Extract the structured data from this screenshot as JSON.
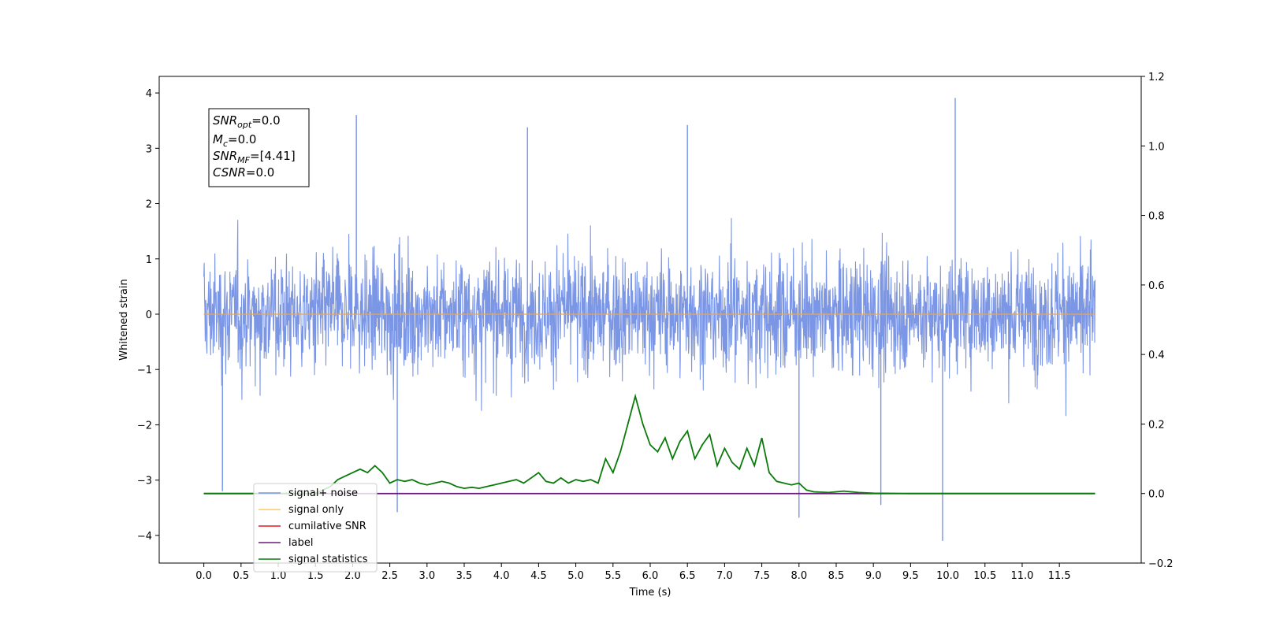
{
  "chart_data": {
    "type": "line",
    "title": "",
    "xlabel": "Time (s)",
    "ylabel": "Whitened strain",
    "xlim": [
      -0.6,
      12.6
    ],
    "ylim": [
      -4.5,
      4.3
    ],
    "y2lim": [
      -0.2,
      1.2
    ],
    "x_ticks": [
      "0.0",
      "0.5",
      "1.0",
      "1.5",
      "2.0",
      "2.5",
      "3.0",
      "3.5",
      "4.0",
      "4.5",
      "5.0",
      "5.5",
      "6.0",
      "6.5",
      "7.0",
      "7.5",
      "8.0",
      "8.5",
      "9.0",
      "9.5",
      "10.0",
      "10.5",
      "11.0",
      "11.5"
    ],
    "y_ticks": [
      "−4",
      "−3",
      "−2",
      "−1",
      "0",
      "1",
      "2",
      "3",
      "4"
    ],
    "y2_ticks": [
      "−0.2",
      "0.0",
      "0.2",
      "0.4",
      "0.6",
      "0.8",
      "1.0",
      "1.2"
    ],
    "grid": false,
    "legend_position": "lower-left",
    "annotation": {
      "line1_main": "SNR",
      "line1_sub": "opt",
      "line1_rest": "=0.0",
      "line2_main": "M",
      "line2_sub": "c",
      "line2_rest": "=0.0",
      "line3_main": "SNR",
      "line3_sub": "MF",
      "line3_rest": "=[4.41]",
      "line4_main": "CSNR",
      "line4_rest": "=0.0"
    },
    "series": [
      {
        "name": "signal+ noise",
        "color": "#7994e6",
        "axis": "left",
        "description_values": {
          "x_range": [
            0.0,
            11.98
          ],
          "approx_envelope": [
            -2.0,
            2.0
          ],
          "max": 3.91,
          "min": -4.1
        }
      },
      {
        "name": "signal only",
        "color": "#f5a623",
        "axis": "left",
        "x": [
          0.0,
          11.98
        ],
        "values": [
          0.0,
          0.0
        ]
      },
      {
        "name": "cumilative SNR",
        "color": "#e31a1c",
        "axis": "right",
        "x": [
          0.0,
          11.98
        ],
        "values": [
          0.0,
          0.0
        ]
      },
      {
        "name": "label",
        "color": "#6a1b7a",
        "axis": "right",
        "x": [
          0.0,
          11.98
        ],
        "values": [
          0.0,
          0.0
        ]
      },
      {
        "name": "signal statistics",
        "color": "#0a7a0a",
        "axis": "right",
        "x": [
          0.0,
          1.0,
          1.5,
          1.6,
          1.7,
          1.8,
          1.9,
          2.0,
          2.1,
          2.2,
          2.3,
          2.4,
          2.5,
          2.6,
          2.7,
          2.8,
          2.9,
          3.0,
          3.1,
          3.2,
          3.3,
          3.4,
          3.5,
          3.6,
          3.7,
          3.8,
          3.9,
          4.0,
          4.1,
          4.2,
          4.3,
          4.4,
          4.5,
          4.6,
          4.7,
          4.8,
          4.9,
          5.0,
          5.1,
          5.2,
          5.3,
          5.4,
          5.5,
          5.6,
          5.7,
          5.8,
          5.9,
          6.0,
          6.1,
          6.2,
          6.3,
          6.4,
          6.5,
          6.6,
          6.7,
          6.8,
          6.9,
          7.0,
          7.1,
          7.2,
          7.3,
          7.4,
          7.5,
          7.6,
          7.7,
          7.8,
          7.9,
          8.0,
          8.1,
          8.2,
          8.4,
          8.6,
          8.8,
          9.0,
          9.5,
          10.0,
          11.0,
          11.98
        ],
        "values": [
          0.0,
          0.0,
          0.0,
          0.01,
          0.02,
          0.04,
          0.05,
          0.06,
          0.07,
          0.06,
          0.08,
          0.06,
          0.03,
          0.04,
          0.035,
          0.04,
          0.03,
          0.025,
          0.03,
          0.035,
          0.03,
          0.02,
          0.015,
          0.018,
          0.015,
          0.02,
          0.025,
          0.03,
          0.035,
          0.04,
          0.03,
          0.045,
          0.06,
          0.035,
          0.03,
          0.045,
          0.03,
          0.04,
          0.035,
          0.04,
          0.03,
          0.1,
          0.06,
          0.12,
          0.2,
          0.28,
          0.2,
          0.14,
          0.12,
          0.16,
          0.1,
          0.15,
          0.18,
          0.1,
          0.14,
          0.17,
          0.08,
          0.13,
          0.09,
          0.07,
          0.13,
          0.08,
          0.16,
          0.06,
          0.035,
          0.03,
          0.025,
          0.03,
          0.01,
          0.005,
          0.003,
          0.007,
          0.003,
          0.001,
          0.0,
          0.0,
          0.0,
          0.0
        ]
      }
    ]
  }
}
